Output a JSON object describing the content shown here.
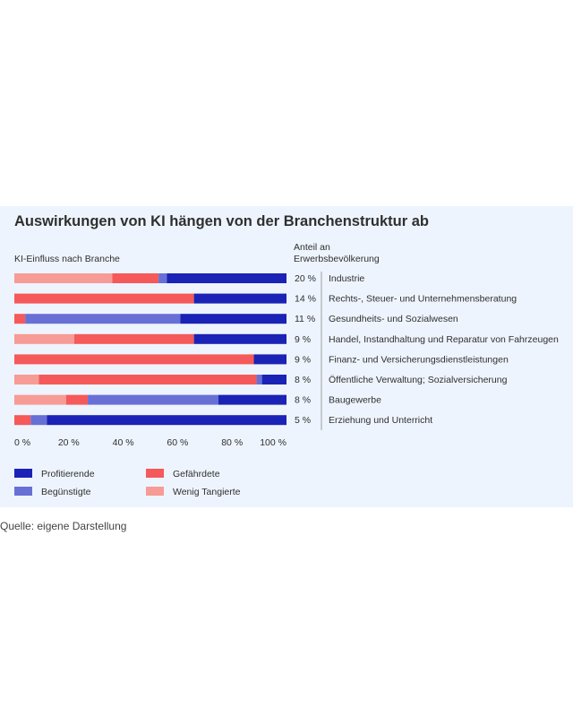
{
  "title": "Auswirkungen von KI hängen von der Branchenstruktur ab",
  "subtitle": "KI-Einfluss nach Branche",
  "share_header": [
    "Anteil an",
    "Erwerbsbevölkerung"
  ],
  "source": "Quelle: eigene Darstellung",
  "colors": {
    "profitierende": "#1a23b5",
    "beguenstigte": "#6870d6",
    "gefaehrdete": "#f5595a",
    "wenig_tangierte": "#f79b96",
    "background": "#eef4fd"
  },
  "chart_data": {
    "type": "bar",
    "orientation": "horizontal",
    "stacked": true,
    "xlim": [
      0,
      100
    ],
    "x_ticks": [
      "0 %",
      "20 %",
      "40 %",
      "60 %",
      "80 %",
      "100 %"
    ],
    "categories": [
      "Industrie",
      "Rechts-, Steuer- und Unternehmensberatung",
      "Gesundheits- und Sozialwesen",
      "Handel, Instandhaltung und Reparatur von Fahrzeugen",
      "Finanz- und Versicherungsdienstleistungen",
      "Öffentliche Verwaltung; Sozialversicherung",
      "Baugewerbe",
      "Erziehung und Unterricht"
    ],
    "shares": [
      "20 %",
      "14 %",
      "11 %",
      "9 %",
      "9 %",
      "8 %",
      "8 %",
      "5 %"
    ],
    "series": [
      {
        "name": "Wenig Tangierte",
        "color_key": "wenig_tangierte",
        "values": [
          36,
          0,
          0,
          22,
          0,
          9,
          19,
          0
        ]
      },
      {
        "name": "Gefährdete",
        "color_key": "gefaehrdete",
        "values": [
          17,
          66,
          4,
          44,
          88,
          80,
          8,
          6
        ]
      },
      {
        "name": "Begünstigte",
        "color_key": "beguenstigte",
        "values": [
          3,
          0,
          57,
          0,
          0,
          2,
          48,
          6
        ]
      },
      {
        "name": "Profitierende",
        "color_key": "profitierende",
        "values": [
          44,
          34,
          39,
          34,
          12,
          9,
          25,
          88
        ]
      }
    ],
    "legend": [
      {
        "name": "Profitierende",
        "color_key": "profitierende"
      },
      {
        "name": "Gefährdete",
        "color_key": "gefaehrdete"
      },
      {
        "name": "Begünstigte",
        "color_key": "beguenstigte"
      },
      {
        "name": "Wenig Tangierte",
        "color_key": "wenig_tangierte"
      }
    ],
    "legend_position": "bottom-left"
  }
}
